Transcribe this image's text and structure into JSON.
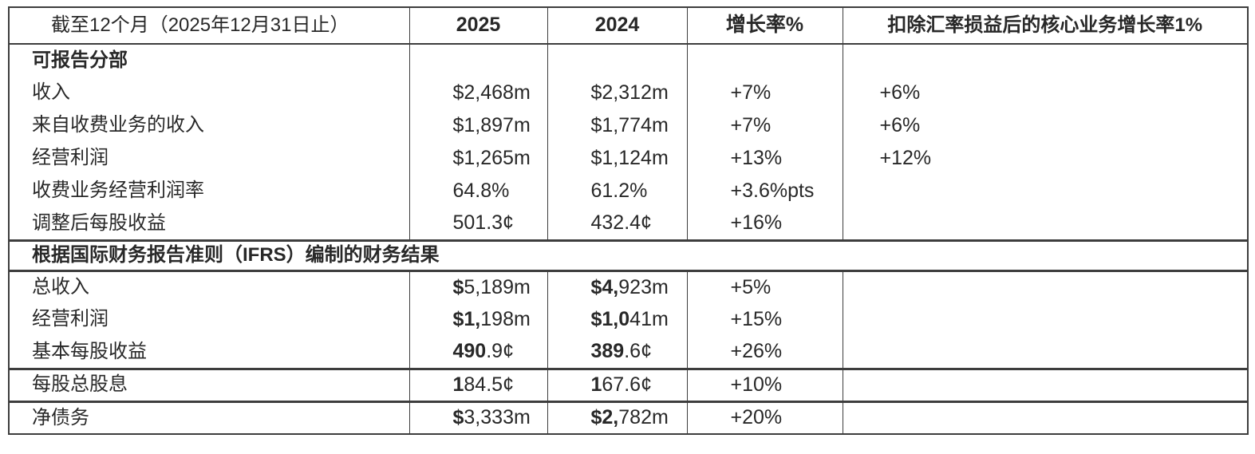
{
  "colors": {
    "text": "#282828",
    "border": "#3d3d3d",
    "background": "#ffffff"
  },
  "table": {
    "header": {
      "period": "截至12个月（2025年12月31日止）",
      "y2025": "2025",
      "y2024": "2024",
      "growth": "增长率%",
      "core_growth": "扣除汇率损益后的核心业务增长率1%"
    },
    "sections": [
      {
        "kind": "rows",
        "name": "reportable-segments",
        "rows": [
          {
            "label": "可报告分部",
            "label_bold": true,
            "v2025": null,
            "v2024": null,
            "growth": "",
            "core": ""
          },
          {
            "label": "收入",
            "v2025": {
              "b": "",
              "r": "$2,468m"
            },
            "v2024": {
              "b": "",
              "r": "$2,312m"
            },
            "growth": "+7%",
            "core": "+6%"
          },
          {
            "label": "来自收费业务的收入",
            "v2025": {
              "b": "",
              "r": "$1,897m"
            },
            "v2024": {
              "b": "",
              "r": "$1,774m"
            },
            "growth": "+7%",
            "core": "+6%"
          },
          {
            "label": "经营利润",
            "v2025": {
              "b": "",
              "r": "$1,265m"
            },
            "v2024": {
              "b": "",
              "r": "$1,124m"
            },
            "growth": "+13%",
            "core": "+12%"
          },
          {
            "label": "收费业务经营利润率",
            "v2025": {
              "b": "",
              "r": "64.8%"
            },
            "v2024": {
              "b": "",
              "r": "61.2%"
            },
            "growth": "+3.6%pts",
            "core": ""
          },
          {
            "label": "调整后每股收益",
            "v2025": {
              "b": "",
              "r": "501.3¢"
            },
            "v2024": {
              "b": "",
              "r": "432.4¢"
            },
            "growth": "+16%",
            "core": ""
          }
        ]
      },
      {
        "kind": "span",
        "name": "ifrs-band",
        "label": "根据国际财务报告准则（IFRS）编制的财务结果"
      },
      {
        "kind": "rows",
        "name": "ifrs-results",
        "rows": [
          {
            "label": "总收入",
            "v2025": {
              "b": "$",
              "r": "5,189m"
            },
            "v2024": {
              "b": "$4,",
              "r": "923m"
            },
            "growth": "+5%",
            "core": ""
          },
          {
            "label": "经营利润",
            "v2025": {
              "b": "$1,",
              "r": "198m"
            },
            "v2024": {
              "b": "$1,0",
              "r": "41m"
            },
            "growth": "+15%",
            "core": ""
          },
          {
            "label": "基本每股收益",
            "v2025": {
              "b": "490",
              "r": ".9¢"
            },
            "v2024": {
              "b": "389",
              "r": ".6¢"
            },
            "growth": "+26%",
            "core": ""
          }
        ]
      },
      {
        "kind": "rows",
        "name": "dividend",
        "rows": [
          {
            "label": "每股总股息",
            "v2025": {
              "b": "1",
              "r": "84.5¢"
            },
            "v2024": {
              "b": "1",
              "r": "67.6¢"
            },
            "growth": "+10%",
            "core": ""
          }
        ]
      },
      {
        "kind": "rows",
        "name": "net-debt",
        "rows": [
          {
            "label": "净债务",
            "v2025": {
              "b": "$",
              "r": "3,333m"
            },
            "v2024": {
              "b": "$2,",
              "r": "782m"
            },
            "growth": "+20%",
            "core": ""
          }
        ]
      }
    ]
  }
}
